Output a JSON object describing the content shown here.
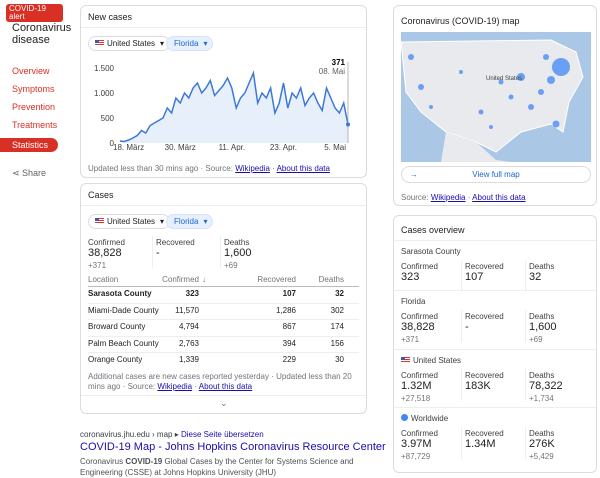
{
  "sidebar": {
    "alert": "COVID-19 alert",
    "topic": "Coronavirus disease",
    "nav": [
      "Overview",
      "Symptoms",
      "Prevention",
      "Treatments",
      "Statistics"
    ],
    "share": "Share"
  },
  "new_cases": {
    "title": "New cases",
    "filters": [
      "United States",
      "Florida"
    ],
    "chart_data": {
      "type": "line",
      "color": "#3b78d8",
      "categories": [
        null,
        null,
        "18. März",
        null,
        null,
        null,
        null,
        null,
        null,
        null,
        null,
        null,
        null,
        null,
        "30. März",
        null,
        null,
        null,
        null,
        null,
        null,
        null,
        null,
        null,
        null,
        null,
        "11. Apr.",
        null,
        null,
        null,
        null,
        null,
        null,
        null,
        null,
        null,
        null,
        null,
        "23. Apr.",
        null,
        null,
        null,
        null,
        null,
        null,
        null,
        null,
        null,
        null,
        null,
        "5. Mai",
        null,
        null,
        "08. Mai"
      ],
      "values": [
        40,
        30,
        60,
        100,
        150,
        250,
        200,
        350,
        400,
        450,
        500,
        700,
        600,
        900,
        800,
        1000,
        900,
        1100,
        1200,
        1000,
        1100,
        1250,
        950,
        1050,
        1150,
        1300,
        1100,
        700,
        900,
        1000,
        1200,
        1400,
        800,
        1000,
        900,
        1100,
        600,
        800,
        1200,
        700,
        1000,
        900,
        1100,
        750,
        900,
        1000,
        800,
        650,
        1100,
        900,
        700,
        600,
        800,
        371
      ],
      "ylim": [
        0,
        1500
      ],
      "yticks": [
        0,
        500,
        {
          "value": 1000,
          "label": "1.000"
        },
        {
          "value": 1500,
          "label": "1.500"
        }
      ],
      "grid": false
    },
    "updated": "Updated less than 30 mins ago",
    "source_label": "Source:",
    "source": "Wikipedia",
    "about": "About this data"
  },
  "cases": {
    "title": "Cases",
    "filters": [
      "United States",
      "Florida"
    ],
    "summary": [
      {
        "label": "Confirmed",
        "value": "38,828",
        "change": "+371"
      },
      {
        "label": "Recovered",
        "value": "-"
      },
      {
        "label": "Deaths",
        "value": "1,600",
        "change": "+69"
      }
    ],
    "table": {
      "header": [
        "Location",
        "Confirmed",
        "Recovered",
        "Deaths"
      ],
      "rows": [
        [
          "Sarasota County",
          "323",
          "107",
          "32"
        ],
        [
          "Miami-Dade County",
          "11,570",
          "1,286",
          "302"
        ],
        [
          "Broward County",
          "4,794",
          "867",
          "174"
        ],
        [
          "Palm Beach County",
          "2,763",
          "394",
          "156"
        ],
        [
          "Orange County",
          "1,339",
          "229",
          "30"
        ]
      ]
    },
    "note": "Additional cases are new cases reported yesterday · Updated less than 20 mins ago",
    "source_label": "Source:",
    "source": "Wikipedia",
    "about": "About this data"
  },
  "result": {
    "breadcrumb": "coronavirus.jhu.edu › map",
    "translate": "Diese Seite übersetzen",
    "title": "COVID-19 Map - Johns Hopkins Coronavirus Resource Center",
    "snippet": [
      "Coronavirus ",
      "COVID-19",
      " Global Cases by the Center for Systems Science and Engineering (CSSE) at Johns Hopkins University (JHU)"
    ]
  },
  "map": {
    "title": "Coronavirus (COVID-19) map",
    "country": "United States",
    "button": "View full map",
    "source_label": "Source:",
    "source": "Wikipedia",
    "about": "About this data"
  },
  "overview": {
    "title": "Cases overview",
    "regions": [
      {
        "name": "Sarasota County",
        "stats": [
          {
            "label": "Confirmed",
            "value": "323"
          },
          {
            "label": "Recovered",
            "value": "107"
          },
          {
            "label": "Deaths",
            "value": "32"
          }
        ]
      },
      {
        "name": "Florida",
        "stats": [
          {
            "label": "Confirmed",
            "value": "38,828",
            "change": "+371"
          },
          {
            "label": "Recovered",
            "value": "-"
          },
          {
            "label": "Deaths",
            "value": "1,600",
            "change": "+69"
          }
        ]
      },
      {
        "name": "United States",
        "stats": [
          {
            "label": "Confirmed",
            "value": "1.32M",
            "change": "+27,518"
          },
          {
            "label": "Recovered",
            "value": "183K"
          },
          {
            "label": "Deaths",
            "value": "78,322",
            "change": "+1,734"
          }
        ]
      },
      {
        "name": "Worldwide",
        "stats": [
          {
            "label": "Confirmed",
            "value": "3.97M",
            "change": "+87,729"
          },
          {
            "label": "Recovered",
            "value": "1.34M"
          },
          {
            "label": "Deaths",
            "value": "276K",
            "change": "+5,429"
          }
        ]
      }
    ]
  }
}
